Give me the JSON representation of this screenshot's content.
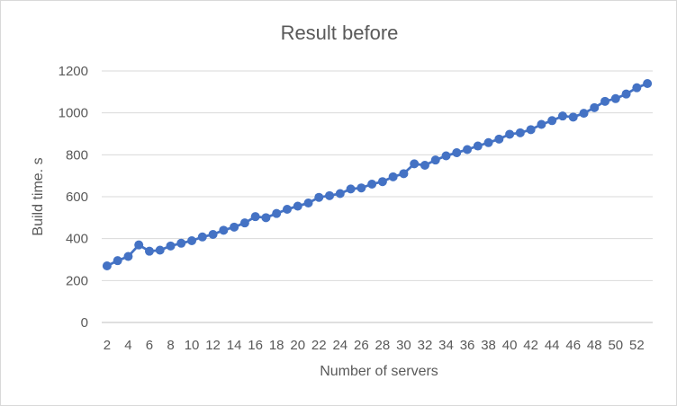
{
  "chart_data": {
    "type": "line",
    "title": "Result before",
    "xlabel": "Number of servers",
    "ylabel": "Build time. s",
    "ylim": [
      0,
      1200
    ],
    "yticks": [
      0,
      200,
      400,
      600,
      800,
      1000,
      1200
    ],
    "xticks": [
      2,
      4,
      6,
      8,
      10,
      12,
      14,
      16,
      18,
      20,
      22,
      24,
      26,
      28,
      30,
      32,
      34,
      36,
      38,
      40,
      42,
      44,
      46,
      48,
      50,
      52
    ],
    "grid": true,
    "legend": "none",
    "series_color": "#4472c4",
    "x": [
      2,
      3,
      4,
      5,
      6,
      7,
      8,
      9,
      10,
      11,
      12,
      13,
      14,
      15,
      16,
      17,
      18,
      19,
      20,
      21,
      22,
      23,
      24,
      25,
      26,
      27,
      28,
      29,
      30,
      31,
      32,
      33,
      34,
      35,
      36,
      37,
      38,
      39,
      40,
      41,
      42,
      43,
      44,
      45,
      46,
      47,
      48,
      49,
      50,
      51,
      52,
      53
    ],
    "values": [
      270,
      295,
      315,
      370,
      340,
      345,
      365,
      378,
      390,
      408,
      420,
      440,
      455,
      475,
      505,
      500,
      520,
      540,
      555,
      570,
      597,
      605,
      615,
      637,
      642,
      660,
      672,
      695,
      710,
      757,
      750,
      775,
      795,
      810,
      825,
      842,
      858,
      875,
      898,
      905,
      920,
      945,
      963,
      985,
      980,
      998,
      1025,
      1055,
      1068,
      1090,
      1120,
      1140
    ]
  }
}
